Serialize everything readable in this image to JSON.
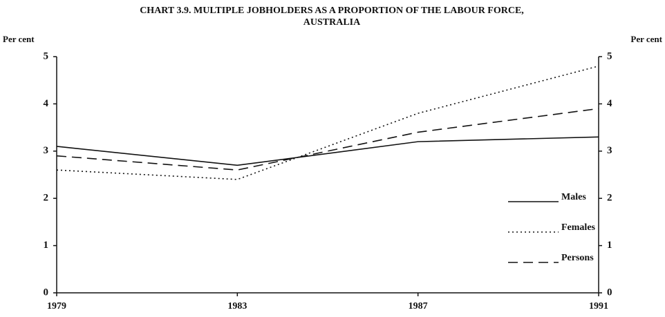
{
  "chart_data": {
    "type": "line",
    "title": [
      "CHART 3.9. MULTIPLE JOBHOLDERS AS A PROPORTION OF THE LABOUR FORCE,",
      "AUSTRALIA"
    ],
    "y_label": "Per cent",
    "y2_label": "Per cent",
    "x": [
      1979,
      1983,
      1987,
      1991
    ],
    "xlim": [
      1979,
      1991
    ],
    "xticks": [
      1979,
      1983,
      1987,
      1991
    ],
    "ylim": [
      0,
      5
    ],
    "yticks": [
      0,
      1,
      2,
      3,
      4,
      5
    ],
    "y2lim": [
      0,
      5
    ],
    "y2ticks": [
      0,
      1,
      2,
      3,
      4,
      5
    ],
    "legend": "lower right",
    "series": [
      {
        "name": "Males",
        "color": "#111111",
        "style": "solid",
        "values": [
          3.1,
          2.7,
          3.2,
          3.3
        ]
      },
      {
        "name": "Females",
        "color": "#111111",
        "style": "dotted",
        "values": [
          2.6,
          2.4,
          3.8,
          4.8
        ]
      },
      {
        "name": "Persons",
        "color": "#111111",
        "style": "dashed",
        "values": [
          2.9,
          2.6,
          3.4,
          3.9
        ]
      }
    ]
  }
}
